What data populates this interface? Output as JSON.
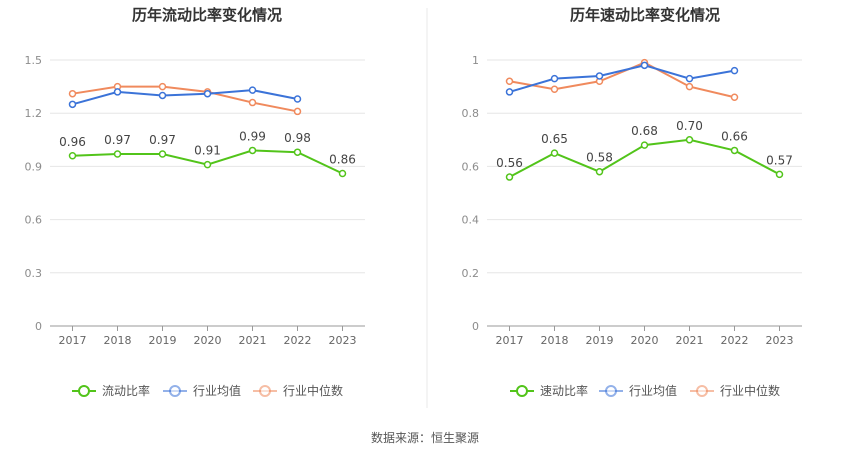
{
  "source_text": "数据来源：恒生聚源",
  "chart_data": [
    {
      "type": "line",
      "title": "历年流动比率变化情况",
      "categories": [
        "2017",
        "2018",
        "2019",
        "2020",
        "2021",
        "2022",
        "2023"
      ],
      "ylim": [
        0,
        1.5
      ],
      "yticks": [
        "0",
        "0.3",
        "0.6",
        "0.9",
        "1.2",
        "1.5"
      ],
      "ytick_values": [
        0,
        0.3,
        0.6,
        0.9,
        1.2,
        1.5
      ],
      "grid": true,
      "legend": "bottom",
      "series": [
        {
          "name": "流动比率",
          "color": "#52c41a",
          "values": [
            0.96,
            0.97,
            0.97,
            0.91,
            0.99,
            0.98,
            0.86
          ],
          "labels": [
            "0.96",
            "0.97",
            "0.97",
            "0.91",
            "0.99",
            "0.98",
            "0.86"
          ]
        },
        {
          "name": "行业均值",
          "color": "#3b73d8",
          "values": [
            1.25,
            1.32,
            1.3,
            1.31,
            1.33,
            1.28,
            null
          ]
        },
        {
          "name": "行业中位数",
          "color": "#f08a5d",
          "values": [
            1.31,
            1.35,
            1.35,
            1.32,
            1.26,
            1.21,
            null
          ]
        }
      ]
    },
    {
      "type": "line",
      "title": "历年速动比率变化情况",
      "categories": [
        "2017",
        "2018",
        "2019",
        "2020",
        "2021",
        "2022",
        "2023"
      ],
      "ylim": [
        0,
        1
      ],
      "yticks": [
        "0",
        "0.2",
        "0.4",
        "0.6",
        "0.8",
        "1"
      ],
      "ytick_values": [
        0,
        0.2,
        0.4,
        0.6,
        0.8,
        1.0
      ],
      "grid": true,
      "legend": "bottom",
      "series": [
        {
          "name": "速动比率",
          "color": "#52c41a",
          "values": [
            0.56,
            0.65,
            0.58,
            0.68,
            0.7,
            0.66,
            0.57
          ],
          "labels": [
            "0.56",
            "0.65",
            "0.58",
            "0.68",
            "0.70",
            "0.66",
            "0.57"
          ]
        },
        {
          "name": "行业均值",
          "color": "#3b73d8",
          "values": [
            0.88,
            0.93,
            0.94,
            0.98,
            0.93,
            0.96,
            null
          ]
        },
        {
          "name": "行业中位数",
          "color": "#f08a5d",
          "values": [
            0.92,
            0.89,
            0.92,
            0.99,
            0.9,
            0.86,
            null
          ]
        }
      ]
    }
  ]
}
